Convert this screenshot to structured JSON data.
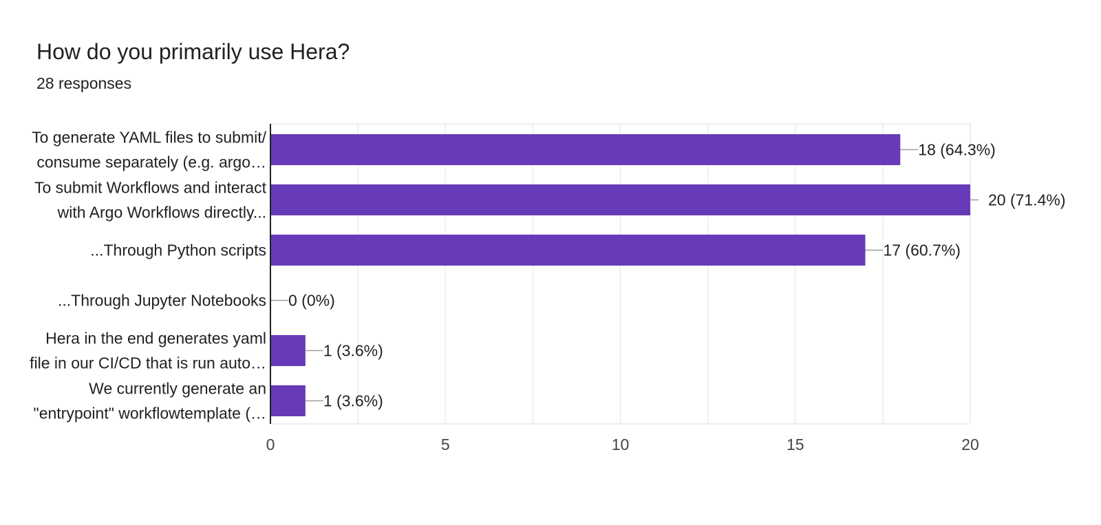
{
  "chart_data": {
    "type": "bar",
    "orientation": "horizontal",
    "title": "How do you primarily use Hera?",
    "subtitle": "28 responses",
    "categories": [
      [
        "To generate YAML files to submit/",
        "consume separately (e.g. argo…"
      ],
      [
        "To submit Workflows and interact",
        "with Argo Workflows directly..."
      ],
      [
        "...Through Python scripts"
      ],
      [
        "...Through Jupyter Notebooks"
      ],
      [
        "Hera in the end generates yaml",
        "file in our CI/CD that is run auto…"
      ],
      [
        "We currently generate an",
        "\"entrypoint\" workflowtemplate (…"
      ]
    ],
    "values": [
      18,
      20,
      17,
      0,
      1,
      1
    ],
    "data_labels": [
      "18 (64.3%)",
      "20 (71.4%)",
      "17 (60.7%)",
      "0 (0%)",
      "1 (3.6%)",
      "1 (3.6%)"
    ],
    "xlim": [
      0,
      20
    ],
    "xticks": [
      0,
      5,
      10,
      15,
      20
    ],
    "bar_color": "#673ab7",
    "grid": true
  }
}
